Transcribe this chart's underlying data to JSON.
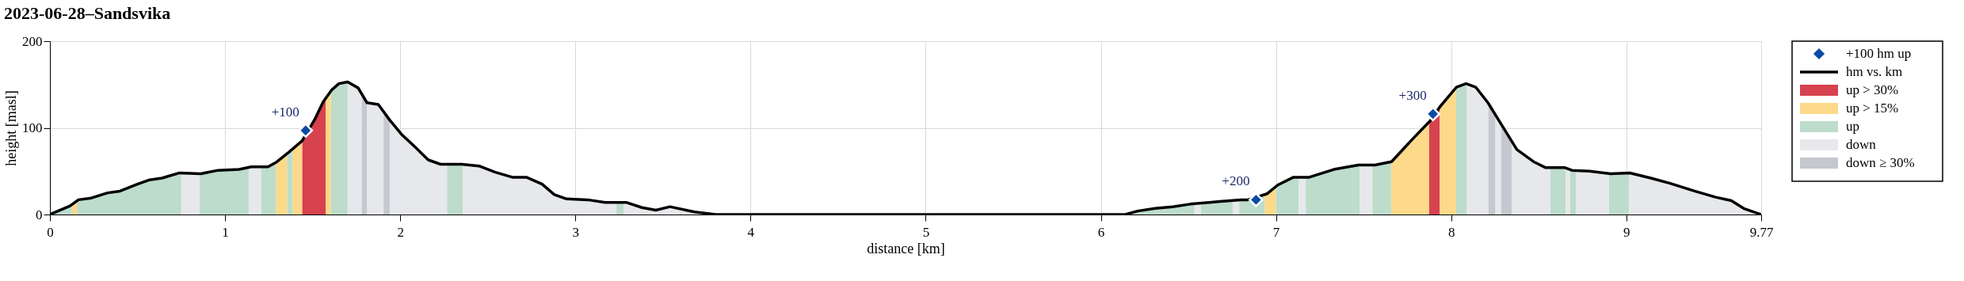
{
  "chart_data": {
    "type": "line",
    "title": "2023-06-28–Sandsvika",
    "xlabel": "distance [km]",
    "ylabel": "height [masl]",
    "xlim": [
      0,
      9.77
    ],
    "xticks": [
      0,
      1,
      2,
      3,
      4,
      5,
      6,
      7,
      8,
      9,
      9.77
    ],
    "ylim": [
      0,
      200
    ],
    "yticks": [
      0,
      100,
      200
    ],
    "grid": true,
    "legend": "right",
    "series": [
      {
        "name": "+100 hm up",
        "type": "scatter",
        "marker": "diamond",
        "color": "#0b4aa8",
        "x": [
          1.46,
          6.886,
          7.896
        ],
        "values": [
          97,
          17,
          116
        ]
      },
      {
        "name": "hm vs. km",
        "type": "line",
        "line_style": "solid",
        "color": "#000000",
        "x": [
          0,
          0.115,
          0.163,
          0.236,
          0.33,
          0.4,
          0.5,
          0.57,
          0.64,
          0.74,
          0.86,
          0.96,
          1.08,
          1.15,
          1.245,
          1.29,
          1.365,
          1.44,
          1.51,
          1.56,
          1.61,
          1.65,
          1.7,
          1.76,
          1.81,
          1.875,
          1.94,
          2.01,
          2.09,
          2.16,
          2.23,
          2.35,
          2.45,
          2.54,
          2.64,
          2.72,
          2.81,
          2.88,
          2.95,
          3.07,
          3.17,
          3.29,
          3.38,
          3.46,
          3.54,
          3.68,
          3.8,
          4.5,
          5.5,
          6.14,
          6.21,
          6.31,
          6.41,
          6.51,
          6.68,
          6.8,
          6.84,
          6.95,
          7.01,
          7.1,
          7.19,
          7.33,
          7.47,
          7.565,
          7.66,
          7.77,
          7.88,
          7.935,
          8.03,
          8.085,
          8.14,
          8.21,
          8.28,
          8.375,
          8.47,
          8.54,
          8.65,
          8.69,
          8.79,
          8.91,
          9.02,
          9.14,
          9.25,
          9.39,
          9.51,
          9.6,
          9.67,
          9.77
        ],
        "values": [
          0,
          10,
          17,
          19,
          25,
          27,
          35,
          40,
          42,
          48,
          47,
          51,
          52,
          55,
          55,
          60,
          72,
          85,
          109,
          130,
          144,
          151,
          153,
          146,
          129,
          127,
          109,
          92,
          77,
          63,
          58,
          58,
          56,
          49,
          43,
          43,
          35,
          23,
          18,
          17,
          14,
          14,
          8,
          5,
          9,
          3,
          0,
          0,
          0,
          0,
          4,
          7,
          9,
          12,
          15,
          17,
          17,
          24,
          34,
          43,
          43,
          52,
          57,
          57,
          61,
          85,
          108,
          124,
          147,
          151,
          147,
          129,
          106,
          75,
          61,
          54,
          54,
          51,
          50,
          47,
          48,
          42,
          36,
          27,
          20,
          16,
          7,
          0
        ]
      },
      {
        "name": "up > 30%",
        "type": "area",
        "color": "#d7424f",
        "x": [
          1.44,
          1.51,
          1.56,
          1.575,
          4.0,
          7.873,
          7.935
        ],
        "values": [
          85,
          109,
          130,
          134,
          null,
          106,
          124
        ]
      },
      {
        "name": "up > 15%",
        "type": "area",
        "color": "#fdd98a",
        "x": [
          0.125,
          0.155,
          1.0,
          1.29,
          1.355,
          1.37,
          1.385,
          1.44,
          1.5,
          1.575,
          1.605,
          4.0,
          6.935,
          7.0,
          7.3,
          7.657,
          7.77,
          7.873,
          7.9,
          7.935,
          8.028
        ],
        "values": [
          11,
          16,
          null,
          60,
          70,
          null,
          76,
          85,
          null,
          134,
          143,
          null,
          22,
          34,
          null,
          61,
          85,
          106,
          null,
          124,
          147
        ]
      },
      {
        "name": "up",
        "type": "area",
        "color": "#bddccb",
        "x": [
          0,
          0.115,
          0.125,
          0.14,
          0.155,
          0.236,
          0.33,
          0.4,
          0.5,
          0.57,
          0.64,
          0.74,
          0.75,
          0.8,
          0.855,
          0.96,
          1.08,
          1.135,
          1.17,
          1.205,
          1.245,
          1.29,
          1.32,
          1.355,
          1.385,
          1.5,
          1.605,
          1.65,
          1.7,
          2.0,
          2.267,
          2.358,
          3.0,
          3.233,
          3.276,
          5.0,
          6.16,
          6.21,
          6.31,
          6.41,
          6.51,
          6.535,
          6.55,
          6.57,
          6.68,
          6.755,
          6.77,
          6.79,
          6.84,
          6.935,
          6.97,
          7.0,
          7.1,
          7.13,
          7.15,
          7.17,
          7.33,
          7.477,
          7.5,
          7.55,
          7.657,
          7.8,
          8.028,
          8.09,
          8.3,
          8.567,
          8.653,
          8.67,
          8.68,
          8.713,
          8.8,
          8.9,
          9.016
        ],
        "values": [
          0,
          10,
          11,
          null,
          16,
          19,
          25,
          27,
          35,
          40,
          42,
          48,
          48,
          null,
          47,
          51,
          52,
          54,
          null,
          55,
          55,
          60,
          null,
          70,
          76,
          null,
          143,
          151,
          153,
          null,
          58,
          58,
          null,
          14,
          14,
          null,
          1,
          4,
          7,
          9,
          12,
          13,
          null,
          13,
          15,
          17,
          null,
          17,
          17,
          22,
          null,
          34,
          43,
          43,
          null,
          43,
          52,
          57,
          null,
          57,
          61,
          null,
          147,
          151,
          null,
          54,
          54,
          null,
          51,
          51,
          null,
          47,
          48
        ]
      },
      {
        "name": "down",
        "type": "area",
        "color": "#e7e8eb",
        "x": [
          0.75,
          0.855,
          1.0,
          1.135,
          1.205,
          1.5,
          1.7,
          1.76,
          1.78,
          1.79,
          1.81,
          1.875,
          1.905,
          1.92,
          1.94,
          2.01,
          2.09,
          2.16,
          2.23,
          2.267,
          2.3,
          2.358,
          2.45,
          2.54,
          2.64,
          2.72,
          2.81,
          2.88,
          2.95,
          3.07,
          3.17,
          3.233,
          3.25,
          3.276,
          3.38,
          3.46,
          3.54,
          3.68,
          3.8,
          4.5,
          5.5,
          6.14,
          6.16,
          6.3,
          6.535,
          6.57,
          6.6,
          6.755,
          6.79,
          7.0,
          7.13,
          7.17,
          7.3,
          7.477,
          7.55,
          7.8,
          8.09,
          8.14,
          8.213,
          8.23,
          8.252,
          8.285,
          8.3,
          8.345,
          8.375,
          8.47,
          8.54,
          8.567,
          8.6,
          8.653,
          8.68,
          8.7,
          8.713,
          8.79,
          8.9,
          8.95,
          9.016,
          9.14,
          9.25,
          9.39,
          9.51,
          9.6,
          9.67,
          9.77
        ],
        "values": [
          48,
          47,
          null,
          54,
          55,
          null,
          153,
          146,
          138,
          null,
          129,
          127,
          118,
          null,
          109,
          92,
          77,
          63,
          58,
          58,
          null,
          58,
          56,
          49,
          43,
          43,
          35,
          23,
          18,
          17,
          14,
          14,
          null,
          14,
          8,
          5,
          9,
          3,
          0,
          0,
          0,
          0,
          1,
          null,
          13,
          13,
          null,
          17,
          17,
          null,
          43,
          43,
          null,
          57,
          57,
          null,
          151,
          147,
          128,
          null,
          117,
          105,
          null,
          85,
          75,
          61,
          54,
          54,
          null,
          54,
          51,
          null,
          51,
          50,
          47,
          null,
          48,
          42,
          36,
          27,
          20,
          16,
          7,
          0
        ]
      },
      {
        "name": "down ≥ 30%",
        "type": "area",
        "color": "#c6c8d0",
        "x": [
          1.78,
          1.81,
          1.85,
          1.905,
          1.94,
          5.0,
          8.213,
          8.252,
          8.27,
          8.285,
          8.345
        ],
        "values": [
          138,
          129,
          null,
          118,
          109,
          null,
          128,
          117,
          null,
          105,
          85
        ]
      }
    ],
    "annotations": [
      {
        "text": "+100",
        "x": 1.46,
        "y": 97
      },
      {
        "text": "+200",
        "x": 6.886,
        "y": 17
      },
      {
        "text": "+300",
        "x": 7.896,
        "y": 116
      }
    ]
  }
}
